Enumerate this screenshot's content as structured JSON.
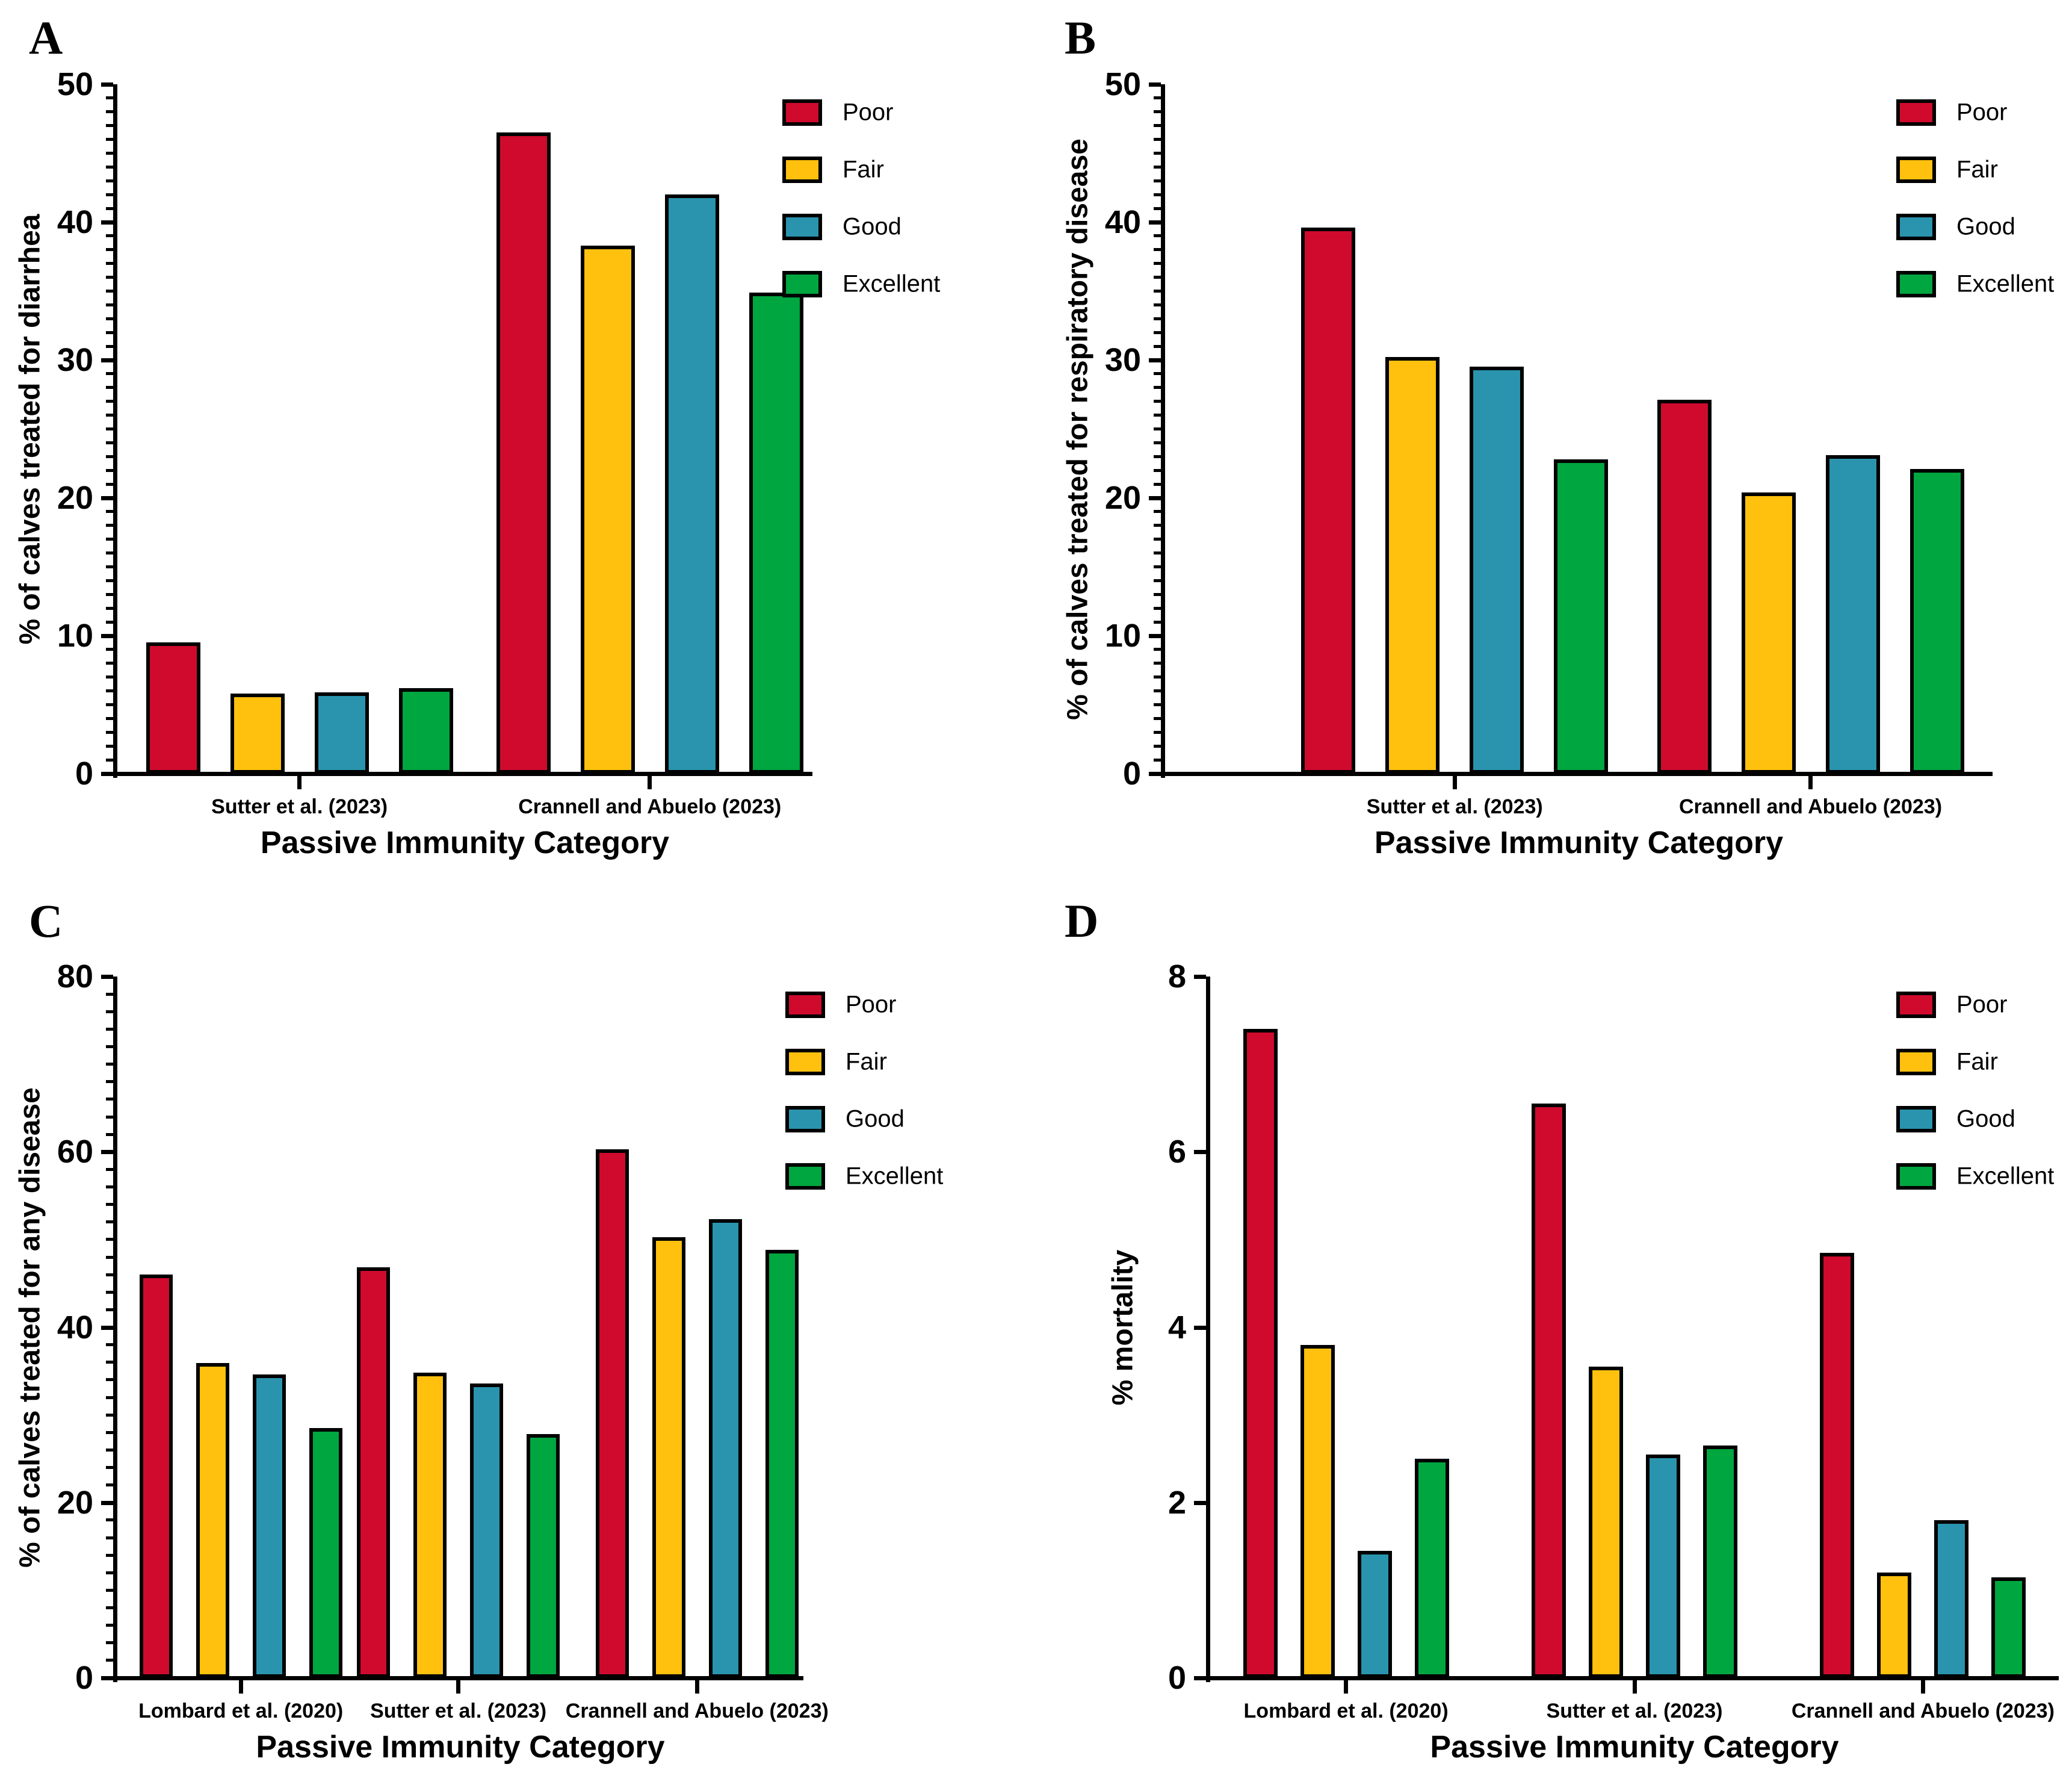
{
  "chart_data": [
    {
      "panel_letter": "A",
      "type": "bar",
      "title": "",
      "ylabel": "% of calves treated for diarrhea",
      "xlabel": "Passive Immunity Category",
      "ylim": [
        0,
        50
      ],
      "ytick_major": 10,
      "ytick_minor": 1,
      "grid": false,
      "legend_position": "top-right",
      "categories": [
        "Sutter et al. (2023)",
        "Crannell and Abuelo (2023)"
      ],
      "series": [
        {
          "name": "Poor",
          "color": "#D00A2D",
          "values": [
            9.5,
            46.5
          ]
        },
        {
          "name": "Fair",
          "color": "#FFC10E",
          "values": [
            5.8,
            38.3
          ]
        },
        {
          "name": "Good",
          "color": "#2A94AE",
          "values": [
            5.9,
            42.0
          ]
        },
        {
          "name": "Excellent",
          "color": "#00A63F",
          "values": [
            6.2,
            34.9
          ]
        }
      ]
    },
    {
      "panel_letter": "B",
      "type": "bar",
      "title": "",
      "ylabel": "% of calves treated for respiratory disease",
      "xlabel": "Passive Immunity Category",
      "ylim": [
        0,
        50
      ],
      "ytick_major": 10,
      "ytick_minor": 1,
      "grid": false,
      "legend_position": "top-right",
      "categories": [
        "Sutter et al. (2023)",
        "Crannell and Abuelo (2023)"
      ],
      "series": [
        {
          "name": "Poor",
          "color": "#D00A2D",
          "values": [
            39.6,
            27.1
          ]
        },
        {
          "name": "Fair",
          "color": "#FFC10E",
          "values": [
            30.2,
            20.4
          ]
        },
        {
          "name": "Good",
          "color": "#2A94AE",
          "values": [
            29.5,
            23.1
          ]
        },
        {
          "name": "Excellent",
          "color": "#00A63F",
          "values": [
            22.8,
            22.1
          ]
        }
      ]
    },
    {
      "panel_letter": "C",
      "type": "bar",
      "title": "",
      "ylabel": "% of calves treated for any disease",
      "xlabel": "Passive Immunity Category",
      "ylim": [
        0,
        80
      ],
      "ytick_major": 20,
      "ytick_minor": 2,
      "grid": false,
      "legend_position": "top-right",
      "categories": [
        "Lombard et al. (2020)",
        "Sutter et al. (2023)",
        "Crannell and Abuelo (2023)"
      ],
      "series": [
        {
          "name": "Poor",
          "color": "#D00A2D",
          "values": [
            46.0,
            46.8,
            60.3
          ]
        },
        {
          "name": "Fair",
          "color": "#FFC10E",
          "values": [
            35.9,
            34.8,
            50.3
          ]
        },
        {
          "name": "Good",
          "color": "#2A94AE",
          "values": [
            34.6,
            33.6,
            52.3
          ]
        },
        {
          "name": "Excellent",
          "color": "#00A63F",
          "values": [
            28.5,
            27.8,
            48.8
          ]
        }
      ]
    },
    {
      "panel_letter": "D",
      "type": "bar",
      "title": "",
      "ylabel": "% mortality",
      "xlabel": "Passive Immunity Category",
      "ylim": [
        0,
        8
      ],
      "ytick_major": 2,
      "ytick_minor": 0,
      "grid": false,
      "legend_position": "top-right",
      "categories": [
        "Lombard et al. (2020)",
        "Sutter et al. (2023)",
        "Crannell and Abuelo (2023)"
      ],
      "series": [
        {
          "name": "Poor",
          "color": "#D00A2D",
          "values": [
            7.4,
            6.55,
            4.85
          ]
        },
        {
          "name": "Fair",
          "color": "#FFC10E",
          "values": [
            3.8,
            3.55,
            1.2
          ]
        },
        {
          "name": "Good",
          "color": "#2A94AE",
          "values": [
            1.45,
            2.55,
            1.8
          ]
        },
        {
          "name": "Excellent",
          "color": "#00A63F",
          "values": [
            2.5,
            2.65,
            1.15
          ]
        }
      ]
    }
  ]
}
